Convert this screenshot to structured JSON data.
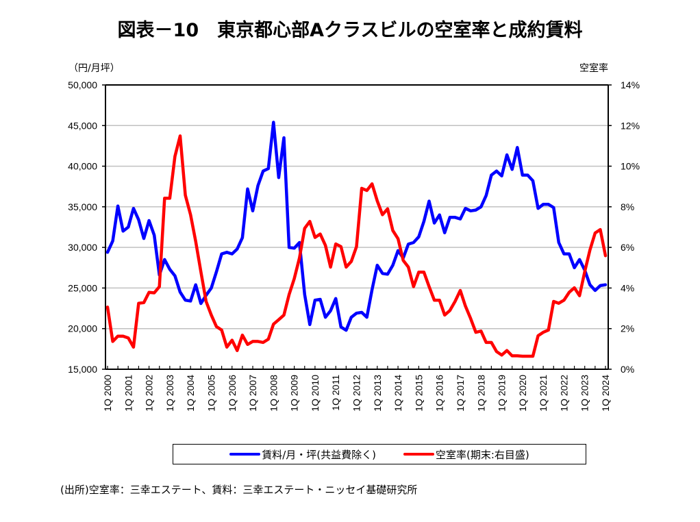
{
  "chart_data": {
    "type": "line",
    "title": "図表－10　東京都心部Aクラスビルの空室率と成約賃料",
    "left_axis_unit": "（円/月坪）",
    "right_axis_unit": "空室率",
    "left_ylim": [
      15000,
      50000
    ],
    "left_yticks": [
      15000,
      20000,
      25000,
      30000,
      35000,
      40000,
      45000,
      50000
    ],
    "left_ytick_labels": [
      "15,000",
      "20,000",
      "25,000",
      "30,000",
      "35,000",
      "40,000",
      "45,000",
      "50,000"
    ],
    "right_ylim": [
      0,
      14
    ],
    "right_yticks": [
      0,
      2,
      4,
      6,
      8,
      10,
      12,
      14
    ],
    "right_ytick_labels": [
      "0%",
      "2%",
      "4%",
      "6%",
      "8%",
      "10%",
      "12%",
      "14%"
    ],
    "grid": true,
    "legend_position": "bottom",
    "x_start": "1Q 2000",
    "x_labels": [
      "1Q 2000",
      "1Q 2001",
      "1Q 2002",
      "1Q 2003",
      "1Q 2004",
      "1Q 2005",
      "1Q 2006",
      "1Q 2007",
      "1Q 2008",
      "1Q 2009",
      "1Q 2010",
      "1Q 2011",
      "1Q 2012",
      "1Q 2013",
      "1Q 2014",
      "1Q 2015",
      "1Q 2016",
      "1Q 2017",
      "1Q 2018",
      "1Q 2019",
      "1Q 2020",
      "1Q 2021",
      "1Q 2022",
      "1Q 2023",
      "1Q 2024"
    ],
    "quarters_per_label": 4,
    "series": [
      {
        "name": "賃料/月・坪(共益費除く)",
        "axis": "left",
        "color": "#0000ff",
        "values": [
          29400,
          30800,
          35100,
          32000,
          32500,
          34800,
          33400,
          31100,
          33300,
          31500,
          26600,
          28500,
          27300,
          26500,
          24500,
          23500,
          23400,
          25400,
          23100,
          24100,
          25000,
          27000,
          29200,
          29400,
          29200,
          29800,
          31200,
          37200,
          34500,
          37600,
          39400,
          39700,
          45400,
          38600,
          43500,
          30000,
          29900,
          30600,
          24200,
          20500,
          23500,
          23600,
          21400,
          22200,
          23700,
          20200,
          19800,
          21400,
          21900,
          22000,
          21400,
          24800,
          27800,
          26800,
          26700,
          27800,
          29600,
          28700,
          30400,
          30600,
          31300,
          33200,
          35700,
          33000,
          34000,
          31800,
          33700,
          33700,
          33500,
          34800,
          34500,
          34600,
          35000,
          36400,
          38900,
          39400,
          38800,
          41400,
          39600,
          42300,
          38900,
          38900,
          38200,
          34800,
          35300,
          35300,
          34900,
          30600,
          29200,
          29200,
          27500,
          28500,
          27200,
          25400,
          24700,
          25300,
          25400
        ]
      },
      {
        "name": "空室率(期末:右目盛)",
        "axis": "right",
        "color": "#ff0000",
        "values": [
          3.06,
          1.37,
          1.63,
          1.63,
          1.54,
          1.09,
          3.25,
          3.28,
          3.79,
          3.76,
          4.07,
          8.42,
          8.42,
          10.48,
          11.49,
          8.57,
          7.61,
          6.3,
          4.8,
          3.34,
          2.67,
          2.1,
          1.93,
          1.09,
          1.43,
          0.92,
          1.68,
          1.22,
          1.37,
          1.37,
          1.32,
          1.48,
          2.22,
          2.44,
          2.67,
          3.68,
          4.46,
          5.48,
          6.94,
          7.28,
          6.49,
          6.66,
          6.1,
          5.03,
          6.17,
          6.04,
          5.03,
          5.31,
          6.04,
          8.91,
          8.8,
          9.13,
          8.29,
          7.61,
          7.9,
          6.83,
          6.43,
          5.36,
          5.03,
          4.07,
          4.78,
          4.78,
          4.07,
          3.4,
          3.4,
          2.67,
          2.89,
          3.34,
          3.88,
          3.11,
          2.5,
          1.82,
          1.88,
          1.32,
          1.32,
          0.87,
          0.7,
          0.92,
          0.66,
          0.66,
          0.64,
          0.64,
          0.64,
          1.65,
          1.82,
          1.93,
          3.34,
          3.25,
          3.4,
          3.79,
          4.01,
          3.62,
          4.8,
          5.87,
          6.71,
          6.88,
          5.59
        ]
      }
    ]
  },
  "legend": {
    "items": [
      {
        "label": "賃料/月・坪(共益費除く)",
        "color": "#0000ff"
      },
      {
        "label": "空室率(期末:右目盛)",
        "color": "#ff0000"
      }
    ]
  },
  "source": "(出所)空室率：三幸エステート、賃料：三幸エステート・ニッセイ基礎研究所"
}
